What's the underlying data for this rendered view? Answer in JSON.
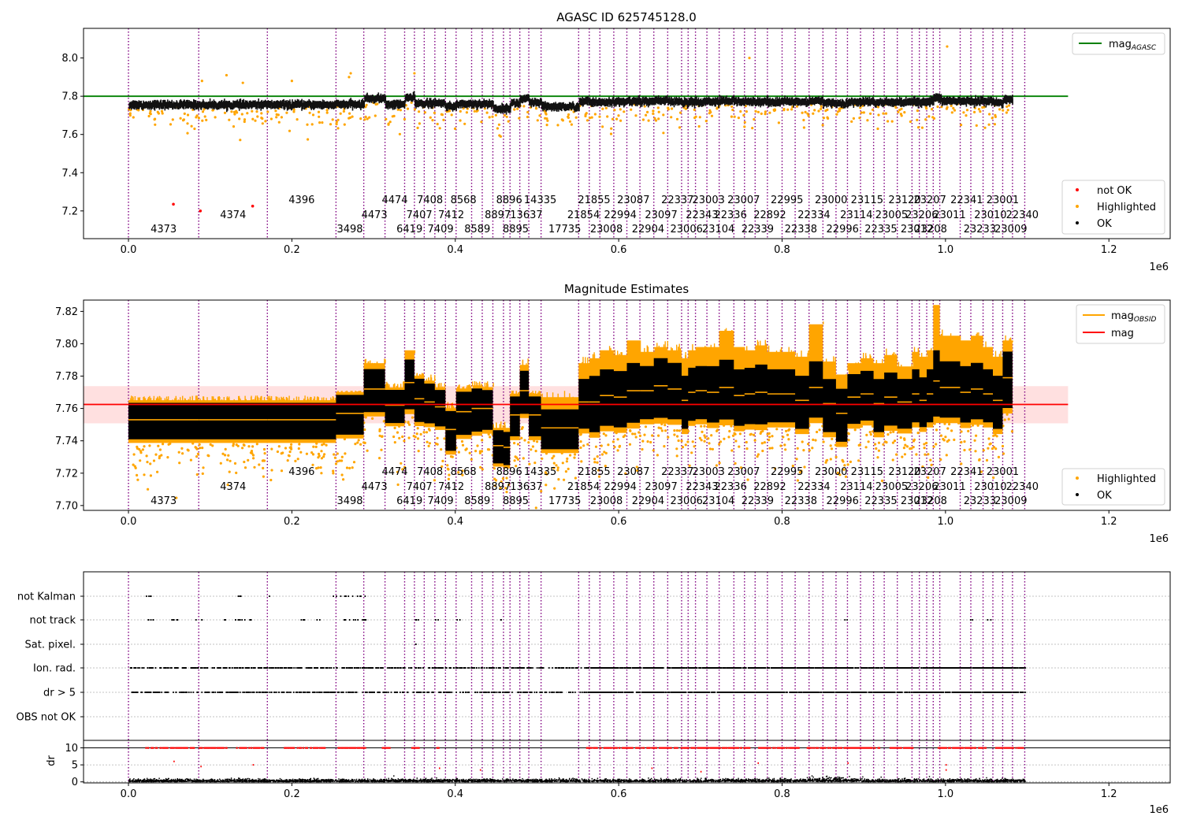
{
  "chart_data": [
    {
      "type": "scatter",
      "title": "AGASC ID 625745128.0",
      "xlim": [
        -55000,
        1275000
      ],
      "ylim": [
        7.055,
        8.155
      ],
      "x_ticks": [
        0,
        200000,
        400000,
        600000,
        800000,
        1000000,
        1200000
      ],
      "x_tick_labels": [
        "0.0",
        "0.2",
        "0.4",
        "0.6",
        "0.8",
        "1.0",
        "1.2"
      ],
      "x_offset_label": "1e6",
      "y_ticks": [
        7.2,
        7.4,
        7.6,
        7.8,
        8.0
      ],
      "y_tick_labels": [
        "7.2",
        "7.4",
        "7.6",
        "7.8",
        "8.0"
      ],
      "legend_top": {
        "position": "upper right",
        "entries": [
          {
            "base": "mag",
            "sub": "AGASC",
            "color": "#008000"
          }
        ]
      },
      "legend_bottom": {
        "position": "lower right",
        "entries": [
          {
            "label": "not OK",
            "color": "#ff0000"
          },
          {
            "label": "Highlighted",
            "color": "#ffa500"
          },
          {
            "label": "OK",
            "color": "#000000"
          }
        ]
      },
      "reference_line": {
        "y": 7.8,
        "x_range": [
          -55000,
          1150000
        ],
        "color": "#008000"
      },
      "not_ok_points": [
        {
          "x": 55000,
          "y": 7.235
        },
        {
          "x": 152000,
          "y": 7.225
        },
        {
          "x": 88000,
          "y": 7.2
        }
      ]
    },
    {
      "type": "scatter",
      "title": "Magnitude Estimates",
      "xlim": [
        -55000,
        1275000
      ],
      "ylim": [
        7.697,
        7.827
      ],
      "x_ticks": [
        0,
        200000,
        400000,
        600000,
        800000,
        1000000,
        1200000
      ],
      "x_tick_labels": [
        "0.0",
        "0.2",
        "0.4",
        "0.6",
        "0.8",
        "1.0",
        "1.2"
      ],
      "x_offset_label": "1e6",
      "y_ticks": [
        7.7,
        7.72,
        7.74,
        7.76,
        7.78,
        7.8,
        7.82
      ],
      "y_tick_labels": [
        "7.70",
        "7.72",
        "7.74",
        "7.76",
        "7.78",
        "7.80",
        "7.82"
      ],
      "legend_top": {
        "position": "upper right",
        "entries": [
          {
            "base": "mag",
            "sub": "OBSID",
            "color": "#ffa500"
          },
          {
            "base": "mag",
            "sub": "",
            "color": "#ff0000"
          }
        ]
      },
      "legend_bottom": {
        "position": "lower right",
        "entries": [
          {
            "label": "Highlighted",
            "color": "#ffa500"
          },
          {
            "label": "OK",
            "color": "#000000"
          }
        ]
      },
      "mean_line": {
        "y": 7.7625,
        "x_range": [
          -55000,
          1150000
        ],
        "band": [
          7.7508,
          7.7738
        ],
        "color": "#ff0000"
      }
    },
    {
      "type": "scatter",
      "title": "",
      "xlim": [
        -55000,
        1275000
      ],
      "flag_rows": [
        "not Kalman",
        "not track",
        "Sat. pixel.",
        "Ion. rad.",
        "dr > 5",
        "OBS not OK"
      ],
      "dr_axis": {
        "label": "dr",
        "ylim": [
          -0.3,
          12.2
        ],
        "ticks": [
          0,
          5,
          10
        ],
        "tick_labels": [
          "0",
          "5",
          "10"
        ],
        "ok_limit": 10
      },
      "x_ticks": [
        0,
        200000,
        400000,
        600000,
        800000,
        1000000,
        1200000
      ],
      "x_tick_labels": [
        "0.0",
        "0.2",
        "0.4",
        "0.6",
        "0.8",
        "1.0",
        "1.2"
      ],
      "x_offset_label": "1e6"
    }
  ],
  "observations": {
    "boundaries": [
      0,
      86000,
      170000,
      254000,
      288000,
      314000,
      338000,
      350000,
      362000,
      375000,
      388000,
      401000,
      420000,
      433000,
      446000,
      459000,
      467000,
      479000,
      490000,
      505000,
      551000,
      564000,
      577000,
      594000,
      610000,
      626000,
      643000,
      660000,
      677000,
      685000,
      694000,
      708000,
      723000,
      741000,
      754000,
      767000,
      782000,
      800000,
      816000,
      833000,
      850000,
      866000,
      880000,
      896000,
      912000,
      925000,
      941000,
      959000,
      968000,
      977000,
      985000,
      993000,
      1018000,
      1031000,
      1046000,
      1058000,
      1070000,
      1082000,
      1097000
    ],
    "labels": [
      {
        "text": "4373",
        "x": 43000,
        "row": 2
      },
      {
        "text": "4374",
        "x": 128000,
        "row": 1
      },
      {
        "text": "4396",
        "x": 212000,
        "row": 0
      },
      {
        "text": "3498",
        "x": 271000,
        "row": 2
      },
      {
        "text": "4473",
        "x": 301000,
        "row": 1
      },
      {
        "text": "4474",
        "x": 326000,
        "row": 0
      },
      {
        "text": "6419",
        "x": 344000,
        "row": 2
      },
      {
        "text": "7407",
        "x": 356000,
        "row": 1
      },
      {
        "text": "7408",
        "x": 369000,
        "row": 0
      },
      {
        "text": "7409",
        "x": 382000,
        "row": 2
      },
      {
        "text": "7412",
        "x": 395000,
        "row": 1
      },
      {
        "text": "8568",
        "x": 410000,
        "row": 0
      },
      {
        "text": "8589",
        "x": 427000,
        "row": 2
      },
      {
        "text": "8897",
        "x": 452000,
        "row": 1
      },
      {
        "text": "8896",
        "x": 466000,
        "row": 0
      },
      {
        "text": "8895",
        "x": 474000,
        "row": 2
      },
      {
        "text": "13637",
        "x": 487000,
        "row": 1
      },
      {
        "text": "14335",
        "x": 504000,
        "row": 0
      },
      {
        "text": "17735",
        "x": 534000,
        "row": 2
      },
      {
        "text": "21854",
        "x": 557000,
        "row": 1
      },
      {
        "text": "21855",
        "x": 570000,
        "row": 0
      },
      {
        "text": "23008",
        "x": 585000,
        "row": 2
      },
      {
        "text": "22994",
        "x": 602000,
        "row": 1
      },
      {
        "text": "23087",
        "x": 618000,
        "row": 0
      },
      {
        "text": "22904",
        "x": 636000,
        "row": 2
      },
      {
        "text": "23097",
        "x": 652000,
        "row": 1
      },
      {
        "text": "22337",
        "x": 672000,
        "row": 0
      },
      {
        "text": "23006",
        "x": 683000,
        "row": 2
      },
      {
        "text": "22343",
        "x": 702000,
        "row": 1
      },
      {
        "text": "23003",
        "x": 710000,
        "row": 0
      },
      {
        "text": "23104",
        "x": 722000,
        "row": 2
      },
      {
        "text": "22336",
        "x": 737000,
        "row": 1
      },
      {
        "text": "23007",
        "x": 753000,
        "row": 0
      },
      {
        "text": "22339",
        "x": 770000,
        "row": 2
      },
      {
        "text": "22892",
        "x": 785000,
        "row": 1
      },
      {
        "text": "22995",
        "x": 806000,
        "row": 0
      },
      {
        "text": "22338",
        "x": 823000,
        "row": 2
      },
      {
        "text": "22334",
        "x": 839000,
        "row": 1
      },
      {
        "text": "23000",
        "x": 860000,
        "row": 0
      },
      {
        "text": "22996",
        "x": 874000,
        "row": 2
      },
      {
        "text": "23114",
        "x": 891000,
        "row": 1
      },
      {
        "text": "23115",
        "x": 904000,
        "row": 0
      },
      {
        "text": "22335",
        "x": 921000,
        "row": 2
      },
      {
        "text": "23005",
        "x": 934000,
        "row": 1
      },
      {
        "text": "23120",
        "x": 950000,
        "row": 0
      },
      {
        "text": "23012",
        "x": 965000,
        "row": 2
      },
      {
        "text": "23206",
        "x": 971000,
        "row": 1
      },
      {
        "text": "23207",
        "x": 981000,
        "row": 0
      },
      {
        "text": "23208",
        "x": 982000,
        "row": 2
      },
      {
        "text": "23011",
        "x": 1005000,
        "row": 1
      },
      {
        "text": "22341",
        "x": 1026000,
        "row": 0
      },
      {
        "text": "23233",
        "x": 1042000,
        "row": 2
      },
      {
        "text": "23010",
        "x": 1055000,
        "row": 1
      },
      {
        "text": "23001",
        "x": 1070000,
        "row": 0
      },
      {
        "text": "23009",
        "x": 1080000,
        "row": 2
      },
      {
        "text": "22340",
        "x": 1094000,
        "row": 1
      }
    ],
    "mag_obsid": [
      7.753,
      7.753,
      7.753,
      7.757,
      7.772,
      7.762,
      7.776,
      7.766,
      7.764,
      7.761,
      7.747,
      7.758,
      7.76,
      7.76,
      7.737,
      7.736,
      7.756,
      7.771,
      7.756,
      7.748,
      7.764,
      7.764,
      7.768,
      7.767,
      7.771,
      7.771,
      7.774,
      7.772,
      7.765,
      7.77,
      7.771,
      7.77,
      7.773,
      7.768,
      7.769,
      7.77,
      7.769,
      7.769,
      7.765,
      7.773,
      7.763,
      7.757,
      7.767,
      7.769,
      7.763,
      7.767,
      7.764,
      7.769,
      7.765,
      7.769,
      7.777,
      7.773,
      7.77,
      7.772,
      7.769,
      7.765,
      7.779
    ],
    "mag_obsid_std": [
      0.0055,
      0.0055,
      0.0055,
      0.006,
      0.0065,
      0.005,
      0.0075,
      0.0065,
      0.006,
      0.0055,
      0.006,
      0.0065,
      0.0065,
      0.006,
      0.005,
      0.005,
      0.006,
      0.0065,
      0.006,
      0.006,
      0.0075,
      0.0085,
      0.0085,
      0.0085,
      0.009,
      0.008,
      0.009,
      0.0085,
      0.008,
      0.008,
      0.008,
      0.0085,
      0.009,
      0.0085,
      0.0085,
      0.009,
      0.008,
      0.008,
      0.008,
      0.0085,
      0.008,
      0.008,
      0.0075,
      0.0075,
      0.008,
      0.008,
      0.0075,
      0.008,
      0.0075,
      0.008,
      0.01,
      0.0085,
      0.0085,
      0.0085,
      0.008,
      0.008,
      0.0085
    ],
    "highlight_spike": [
      7.768,
      7.768,
      7.768,
      7.771,
      7.792,
      7.777,
      7.8,
      7.782,
      7.781,
      7.776,
      7.764,
      7.775,
      7.777,
      7.777,
      7.752,
      7.752,
      7.771,
      7.791,
      7.771,
      7.771,
      7.792,
      7.795,
      7.8,
      7.797,
      7.806,
      7.799,
      7.802,
      7.8,
      7.795,
      7.8,
      7.802,
      7.802,
      7.812,
      7.802,
      7.8,
      7.803,
      7.799,
      7.799,
      7.796,
      7.816,
      7.793,
      7.785,
      7.792,
      7.795,
      7.792,
      7.797,
      7.79,
      7.799,
      7.796,
      7.8,
      7.828,
      7.809,
      7.806,
      7.809,
      7.802,
      7.796,
      7.806
    ],
    "mag_level_top": [
      7.755,
      7.755,
      7.755,
      7.757,
      7.788,
      7.757,
      7.792,
      7.762,
      7.762,
      7.762,
      7.745,
      7.76,
      7.76,
      7.76,
      7.735,
      7.735,
      7.764,
      7.785,
      7.765,
      7.745,
      7.772,
      7.765,
      7.77,
      7.769,
      7.775,
      7.772,
      7.775,
      7.772,
      7.767,
      7.772,
      7.772,
      7.772,
      7.776,
      7.77,
      7.771,
      7.772,
      7.771,
      7.771,
      7.767,
      7.775,
      7.765,
      7.76,
      7.768,
      7.771,
      7.766,
      7.77,
      7.767,
      7.771,
      7.766,
      7.772,
      7.79,
      7.776,
      7.772,
      7.775,
      7.772,
      7.768,
      7.783
    ]
  }
}
